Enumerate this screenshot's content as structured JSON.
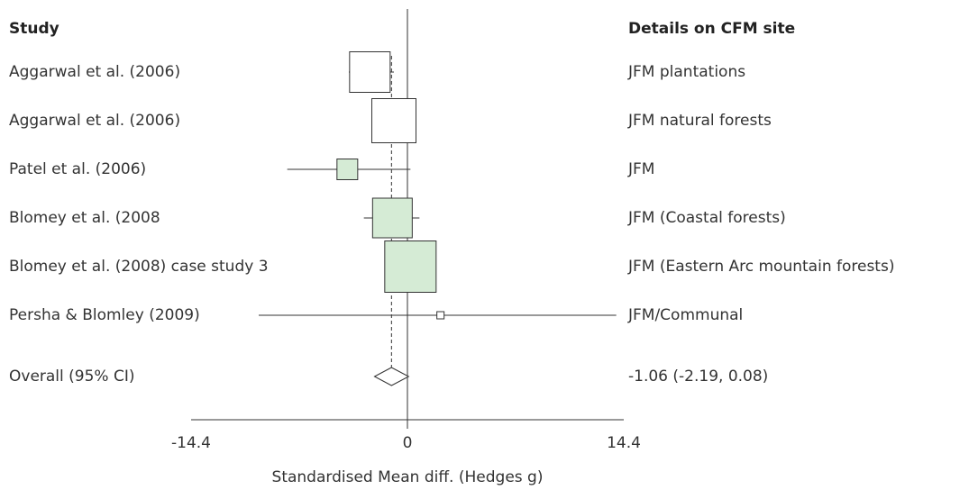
{
  "chart_data": {
    "type": "forest",
    "study_header": "Study",
    "detail_header": "Details on CFM site",
    "xlabel": "Standardised Mean diff. (Hedges g)",
    "xlim": [
      -14.4,
      14.4
    ],
    "xticks": [
      -14.4,
      0,
      14.4
    ],
    "studies": [
      {
        "label": "Aggarwal et al. (2006)",
        "detail": "JFM plantations",
        "estimate": -2.5,
        "lower": -3.9,
        "upper": -0.9,
        "weight": 45,
        "color": "#ffffff"
      },
      {
        "label": "Aggarwal et al. (2006)",
        "detail": "JFM natural forests",
        "estimate": -0.9,
        "lower": -2.4,
        "upper": 0.6,
        "weight": 49,
        "color": "#ffffff"
      },
      {
        "label": "Patel et al. (2006)",
        "detail": "JFM",
        "estimate": -4.0,
        "lower": -8.0,
        "upper": 0.2,
        "weight": 23,
        "color": "#d5ebd5"
      },
      {
        "label": "Blomey et al. (2008",
        "detail": "JFM (Coastal forests)",
        "estimate": -1.0,
        "lower": -2.9,
        "upper": 0.8,
        "weight": 44,
        "color": "#d5ebd5"
      },
      {
        "label": "Blomey et al. (2008) case study 3",
        "detail": "JFM (Eastern Arc mountain forests)",
        "estimate": 0.2,
        "lower": -1.5,
        "upper": 1.9,
        "weight": 57,
        "color": "#d5ebd5"
      },
      {
        "label": "Persha & Blomley (2009)",
        "detail": "JFM/Communal",
        "estimate": 2.2,
        "lower": -9.9,
        "upper": 13.9,
        "weight": 8,
        "color": "#ffffff"
      }
    ],
    "overall": {
      "label": "Overall (95% CI)",
      "value": -1.06,
      "lower": -2.19,
      "upper": 0.08,
      "value_label": "-1.06 (-2.19, 0.08)"
    }
  }
}
